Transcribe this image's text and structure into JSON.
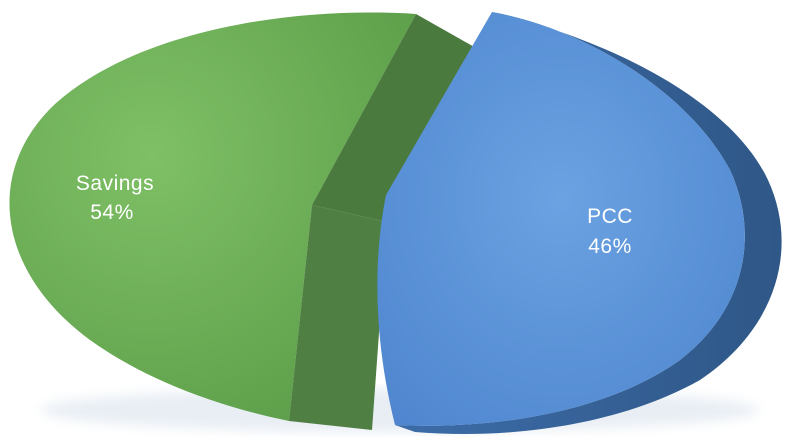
{
  "chart_data": {
    "type": "pie",
    "style": "3d-exploded",
    "categories": [
      "Savings",
      "PCC"
    ],
    "values": [
      54,
      46
    ],
    "unit": "%",
    "labels": [
      {
        "name": "Savings",
        "value_text": "54%"
      },
      {
        "name": "PCC",
        "value_text": "46%"
      }
    ],
    "colors": {
      "Savings": "#67ad53",
      "PCC": "#5b94d9"
    },
    "legend": "none"
  }
}
